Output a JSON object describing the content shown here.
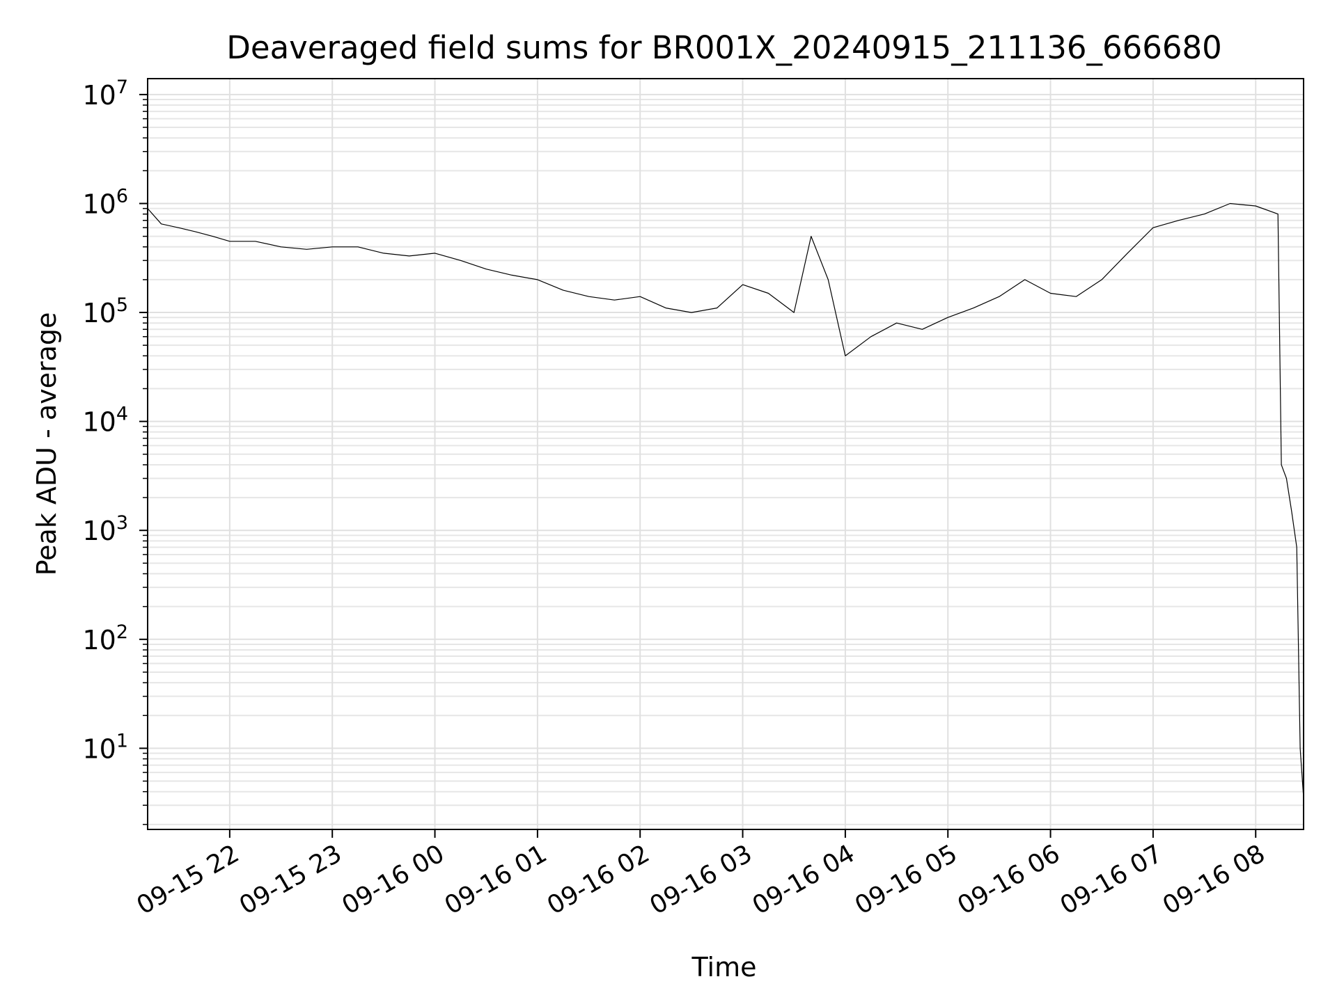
{
  "chart_data": {
    "type": "line",
    "title": "Deaveraged field sums for BR001X_20240915_211136_666680",
    "xlabel": "Time",
    "ylabel": "Peak ADU - average",
    "xscale": "time",
    "yscale": "log",
    "xlim": [
      "2024-09-15 21:12",
      "2024-09-16 08:28"
    ],
    "ylim": [
      1.8,
      14000000
    ],
    "grid": true,
    "line_color": "#000000",
    "x_ticks": [
      "09-15 22",
      "09-15 23",
      "09-16 00",
      "09-16 01",
      "09-16 02",
      "09-16 03",
      "09-16 04",
      "09-16 05",
      "09-16 06",
      "09-16 07",
      "09-16 08"
    ],
    "x_tick_values": [
      "2024-09-15 22:00",
      "2024-09-15 23:00",
      "2024-09-16 00:00",
      "2024-09-16 01:00",
      "2024-09-16 02:00",
      "2024-09-16 03:00",
      "2024-09-16 04:00",
      "2024-09-16 05:00",
      "2024-09-16 06:00",
      "2024-09-16 07:00",
      "2024-09-16 08:00"
    ],
    "y_ticks": [
      {
        "base": "10",
        "exp": "1",
        "value": 10
      },
      {
        "base": "10",
        "exp": "2",
        "value": 100
      },
      {
        "base": "10",
        "exp": "3",
        "value": 1000
      },
      {
        "base": "10",
        "exp": "4",
        "value": 10000
      },
      {
        "base": "10",
        "exp": "5",
        "value": 100000
      },
      {
        "base": "10",
        "exp": "6",
        "value": 1000000
      },
      {
        "base": "10",
        "exp": "7",
        "value": 10000000
      }
    ],
    "series": [
      {
        "x": [
          "2024-09-15 21:12",
          "2024-09-15 21:20",
          "2024-09-15 21:30",
          "2024-09-15 21:40",
          "2024-09-15 21:50",
          "2024-09-15 22:00",
          "2024-09-15 22:15",
          "2024-09-15 22:30",
          "2024-09-15 22:45",
          "2024-09-15 23:00",
          "2024-09-15 23:15",
          "2024-09-15 23:30",
          "2024-09-15 23:45",
          "2024-09-16 00:00",
          "2024-09-16 00:15",
          "2024-09-16 00:30",
          "2024-09-16 00:45",
          "2024-09-16 01:00",
          "2024-09-16 01:15",
          "2024-09-16 01:30",
          "2024-09-16 01:45",
          "2024-09-16 02:00",
          "2024-09-16 02:15",
          "2024-09-16 02:30",
          "2024-09-16 02:45",
          "2024-09-16 03:00",
          "2024-09-16 03:15",
          "2024-09-16 03:30",
          "2024-09-16 03:40",
          "2024-09-16 03:50",
          "2024-09-16 04:00",
          "2024-09-16 04:15",
          "2024-09-16 04:30",
          "2024-09-16 04:45",
          "2024-09-16 05:00",
          "2024-09-16 05:15",
          "2024-09-16 05:30",
          "2024-09-16 05:45",
          "2024-09-16 06:00",
          "2024-09-16 06:15",
          "2024-09-16 06:30",
          "2024-09-16 06:45",
          "2024-09-16 07:00",
          "2024-09-16 07:15",
          "2024-09-16 07:30",
          "2024-09-16 07:45",
          "2024-09-16 08:00",
          "2024-09-16 08:13",
          "2024-09-16 08:15",
          "2024-09-16 08:18",
          "2024-09-16 08:21",
          "2024-09-16 08:24",
          "2024-09-16 08:26",
          "2024-09-16 08:28"
        ],
        "y": [
          900000,
          650000,
          600000,
          550000,
          500000,
          450000,
          450000,
          400000,
          380000,
          400000,
          400000,
          350000,
          330000,
          350000,
          300000,
          250000,
          220000,
          200000,
          160000,
          140000,
          130000,
          140000,
          110000,
          100000,
          110000,
          180000,
          150000,
          100000,
          500000,
          200000,
          40000,
          60000,
          80000,
          70000,
          90000,
          110000,
          140000,
          200000,
          150000,
          140000,
          200000,
          350000,
          600000,
          700000,
          800000,
          1000000,
          950000,
          800000,
          4000,
          3000,
          1500,
          700,
          10,
          3.5
        ]
      }
    ]
  }
}
